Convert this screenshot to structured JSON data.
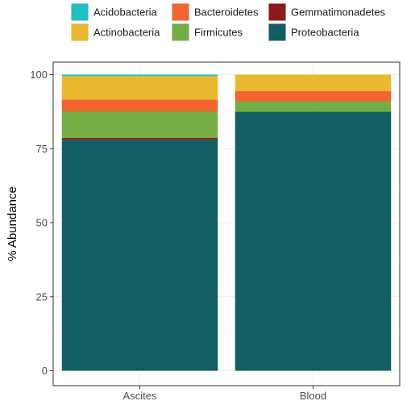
{
  "chart_data": {
    "type": "bar",
    "stacked": true,
    "categories": [
      "Ascites",
      "Blood"
    ],
    "series": [
      {
        "name": "Proteobacteria",
        "color": "#125e62",
        "values": [
          78.0,
          87.5
        ]
      },
      {
        "name": "Gemmatimonadetes",
        "color": "#8b1a1a",
        "values": [
          0.6,
          0.0
        ]
      },
      {
        "name": "Firmicutes",
        "color": "#74ad44",
        "values": [
          9.0,
          3.5
        ]
      },
      {
        "name": "Bacteroidetes",
        "color": "#f26430",
        "values": [
          4.0,
          3.5
        ]
      },
      {
        "name": "Actinobacteria",
        "color": "#e8b92e",
        "values": [
          7.9,
          5.5
        ]
      },
      {
        "name": "Acidobacteria",
        "color": "#1fbfc4",
        "values": [
          0.5,
          0.0
        ]
      }
    ],
    "legend": {
      "position": "top",
      "order": [
        "Acidobacteria",
        "Bacteroidetes",
        "Gemmatimonadetes",
        "Actinobacteria",
        "Firmicutes",
        "Proteobacteria"
      ]
    },
    "xlabel": "",
    "ylabel": "% Abundance",
    "ylim": [
      0,
      100
    ],
    "yticks": [
      0,
      25,
      50,
      75,
      100
    ],
    "grid": true
  }
}
